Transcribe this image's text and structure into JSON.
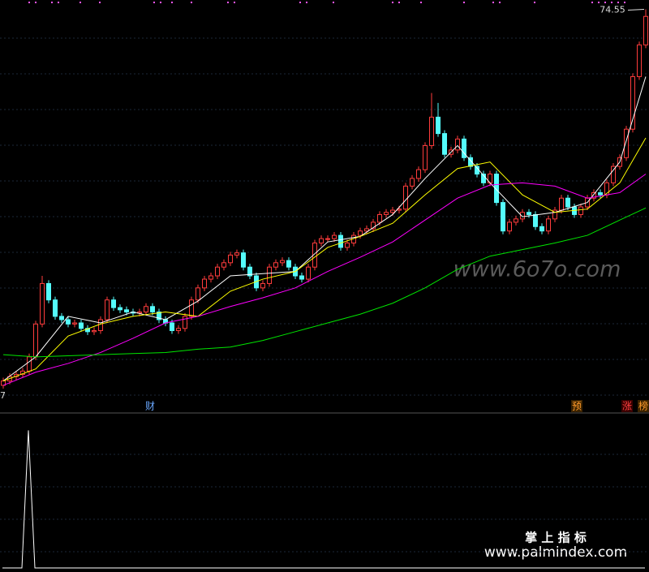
{
  "chart_data": {
    "type": "candlestick",
    "ylim": [
      37.6,
      75.4
    ],
    "open": [
      40.2,
      40.6,
      41.0,
      41.2,
      41.5,
      42.8,
      45.8,
      49.5,
      48.0,
      46.5,
      46.2,
      45.8,
      45.9,
      45.4,
      45.1,
      45.2,
      46.2,
      48.0,
      47.3,
      47.1,
      46.9,
      46.8,
      46.9,
      47.4,
      46.9,
      46.2,
      45.9,
      45.2,
      45.4,
      46.5,
      48.0,
      49.1,
      49.9,
      50.2,
      51.0,
      51.4,
      52.1,
      52.3,
      51.0,
      50.2,
      49.1,
      49.5,
      51.0,
      51.4,
      51.6,
      51.0,
      50.2,
      49.9,
      51.0,
      53.2,
      53.6,
      53.6,
      53.9,
      52.8,
      53.2,
      53.9,
      54.3,
      54.5,
      55.1,
      55.8,
      56.0,
      56.2,
      56.3,
      58.4,
      59.1,
      59.9,
      62.1,
      64.7,
      63.2,
      61.3,
      61.7,
      62.7,
      61.0,
      60.2,
      59.5,
      58.7,
      59.5,
      56.9,
      54.3,
      55.1,
      55.4,
      56.0,
      55.8,
      54.7,
      54.3,
      55.4,
      56.2,
      57.3,
      56.5,
      55.8,
      56.5,
      57.3,
      57.8,
      57.6,
      58.7,
      60.2,
      61.0,
      63.6,
      68.4,
      71.3
    ],
    "high": [
      40.9,
      41.3,
      41.5,
      41.8,
      43.1,
      46.1,
      50.2,
      49.8,
      48.3,
      46.8,
      46.5,
      46.2,
      46.2,
      45.7,
      45.5,
      46.5,
      48.3,
      48.3,
      47.6,
      47.4,
      47.2,
      47.2,
      47.7,
      47.7,
      47.2,
      46.5,
      46.2,
      45.7,
      46.8,
      48.3,
      49.4,
      50.2,
      50.5,
      51.3,
      51.7,
      52.4,
      52.6,
      52.6,
      51.3,
      50.5,
      49.8,
      51.3,
      51.7,
      51.9,
      51.9,
      51.3,
      50.5,
      51.3,
      53.5,
      53.9,
      53.9,
      54.2,
      54.2,
      53.5,
      54.2,
      54.6,
      54.8,
      55.4,
      56.1,
      56.3,
      56.5,
      56.6,
      58.7,
      59.4,
      60.2,
      62.4,
      66.9,
      66.0,
      63.5,
      62.0,
      63.0,
      63.0,
      61.3,
      60.5,
      59.8,
      59.8,
      59.8,
      57.2,
      55.4,
      55.7,
      56.3,
      56.3,
      56.1,
      55.0,
      55.7,
      56.5,
      57.6,
      57.6,
      56.8,
      56.8,
      57.6,
      58.1,
      58.1,
      59.0,
      60.5,
      61.3,
      63.9,
      68.7,
      71.6,
      74.55
    ],
    "low": [
      39.9,
      40.3,
      40.7,
      40.9,
      41.2,
      42.5,
      45.5,
      47.7,
      46.2,
      45.9,
      45.5,
      45.5,
      45.1,
      44.8,
      44.8,
      44.9,
      45.9,
      47.0,
      46.8,
      46.6,
      46.5,
      46.5,
      46.6,
      46.6,
      45.9,
      45.6,
      44.9,
      44.9,
      45.1,
      46.2,
      47.7,
      48.8,
      49.6,
      49.9,
      50.7,
      51.1,
      51.8,
      50.7,
      49.9,
      48.8,
      48.8,
      49.2,
      50.7,
      51.1,
      50.7,
      49.9,
      49.6,
      49.6,
      50.7,
      52.9,
      53.3,
      53.3,
      52.5,
      52.5,
      52.9,
      53.6,
      54.0,
      54.2,
      54.8,
      55.5,
      55.7,
      55.9,
      56.0,
      58.1,
      58.8,
      59.6,
      61.8,
      62.9,
      61.0,
      61.0,
      61.4,
      60.7,
      59.9,
      59.2,
      58.4,
      58.4,
      56.6,
      54.0,
      54.0,
      54.8,
      55.1,
      55.5,
      54.4,
      54.0,
      54.0,
      55.1,
      55.9,
      56.2,
      55.5,
      55.5,
      56.2,
      57.0,
      57.3,
      57.3,
      58.4,
      59.9,
      60.7,
      63.3,
      68.1,
      71.0
    ],
    "close": [
      40.6,
      41.0,
      41.2,
      41.5,
      42.8,
      45.8,
      49.5,
      48.0,
      46.5,
      46.2,
      45.8,
      45.9,
      45.4,
      45.1,
      45.2,
      46.2,
      48.0,
      47.3,
      47.1,
      46.9,
      46.8,
      46.9,
      47.4,
      46.9,
      46.2,
      45.9,
      45.2,
      45.4,
      46.5,
      48.0,
      49.1,
      49.9,
      50.2,
      51.0,
      51.4,
      52.1,
      52.3,
      51.0,
      50.2,
      49.1,
      49.5,
      51.0,
      51.4,
      51.6,
      51.0,
      50.2,
      49.9,
      51.0,
      53.2,
      53.6,
      53.6,
      53.9,
      52.8,
      53.2,
      53.9,
      54.3,
      54.5,
      55.1,
      55.8,
      56.0,
      56.2,
      56.3,
      58.4,
      59.1,
      59.9,
      62.1,
      64.7,
      63.2,
      61.3,
      61.7,
      62.7,
      61.0,
      60.2,
      59.5,
      58.7,
      59.5,
      56.9,
      54.3,
      55.1,
      55.4,
      56.0,
      55.8,
      54.7,
      54.3,
      55.4,
      56.2,
      57.3,
      56.5,
      55.8,
      56.5,
      57.3,
      57.8,
      57.6,
      58.7,
      60.2,
      61.0,
      63.6,
      68.4,
      71.3,
      73.9
    ],
    "up_color": "#ff3c3c",
    "down_color": "#54fcfc",
    "series": [
      {
        "color": "#ffffff",
        "x": [
          0,
          5,
          10,
          15,
          20,
          25,
          30,
          35,
          40,
          45,
          50,
          55,
          60,
          65,
          70,
          75,
          80,
          85,
          90,
          95,
          99
        ],
        "values": [
          40.6,
          42.8,
          46.5,
          45.9,
          46.9,
          46.2,
          47.9,
          50.2,
          50.4,
          50.6,
          53.3,
          53.8,
          55.8,
          59.1,
          62.1,
          58.7,
          55.6,
          56.0,
          56.9,
          60.6,
          68.4
        ]
      },
      {
        "color": "#ffff00",
        "x": [
          0,
          5,
          10,
          15,
          20,
          25,
          30,
          35,
          40,
          45,
          50,
          55,
          60,
          65,
          70,
          75,
          80,
          85,
          90,
          95,
          99
        ],
        "values": [
          40.6,
          41.7,
          44.7,
          45.8,
          46.5,
          46.9,
          46.5,
          48.8,
          49.9,
          50.6,
          52.8,
          53.8,
          55.0,
          57.6,
          60.0,
          60.6,
          57.6,
          56.0,
          56.3,
          58.7,
          62.8
        ]
      },
      {
        "color": "#ff00ff",
        "x": [
          0,
          5,
          10,
          15,
          20,
          25,
          30,
          35,
          40,
          45,
          50,
          55,
          60,
          65,
          70,
          75,
          80,
          85,
          90,
          95,
          99
        ],
        "values": [
          40.2,
          41.4,
          42.2,
          43.2,
          44.5,
          45.9,
          46.5,
          47.4,
          48.2,
          49.1,
          50.6,
          51.9,
          53.3,
          55.3,
          57.3,
          58.5,
          58.7,
          58.4,
          57.3,
          57.8,
          59.5
        ]
      },
      {
        "color": "#00e600",
        "x": [
          0,
          5,
          10,
          15,
          20,
          25,
          30,
          35,
          40,
          45,
          50,
          55,
          60,
          65,
          70,
          75,
          80,
          85,
          90,
          95,
          99
        ],
        "values": [
          43.0,
          42.8,
          42.9,
          43.0,
          43.1,
          43.2,
          43.5,
          43.7,
          44.3,
          45.1,
          45.9,
          46.7,
          47.7,
          49.1,
          50.8,
          52.0,
          52.6,
          53.2,
          53.9,
          55.3,
          56.4
        ]
      }
    ],
    "low_label": "7",
    "event_markers": [
      "财",
      "预",
      "涨",
      "榜"
    ],
    "indicator": {
      "type": "line",
      "color": "#ffffff",
      "ylim": [
        0,
        1.15
      ],
      "values": [
        0,
        0,
        0,
        0,
        1,
        0,
        0,
        0,
        0,
        0,
        0,
        0,
        0,
        0,
        0,
        0,
        0,
        0,
        0,
        0,
        0,
        0,
        0,
        0,
        0,
        0,
        0,
        0,
        0,
        0,
        0,
        0,
        0,
        0,
        0,
        0,
        0,
        0,
        0,
        0,
        0,
        0,
        0,
        0,
        0,
        0,
        0,
        0,
        0,
        0,
        0,
        0,
        0,
        0,
        0,
        0,
        0,
        0,
        0,
        0,
        0,
        0,
        0,
        0,
        0,
        0,
        0,
        0,
        0,
        0,
        0,
        0,
        0,
        0,
        0,
        0,
        0,
        0,
        0,
        0,
        0,
        0,
        0,
        0,
        0,
        0,
        0,
        0,
        0,
        0,
        0,
        0,
        0,
        0,
        0,
        0,
        0,
        0,
        0,
        0
      ]
    }
  },
  "watermarks": [
    "www.6o7o.com",
    "掌 上 指 标",
    "www.palmindex.com"
  ]
}
